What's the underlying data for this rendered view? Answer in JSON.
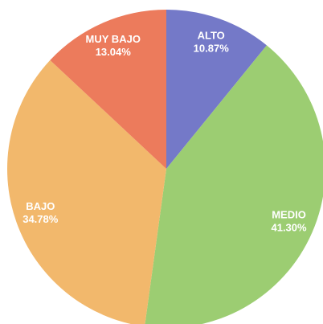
{
  "chart_data": {
    "type": "pie",
    "categories": [
      "ALTO",
      "MEDIO",
      "BAJO",
      "MUY BAJO"
    ],
    "values": [
      10.87,
      41.3,
      34.78,
      13.04
    ],
    "value_labels": [
      "10.87%",
      "41.30%",
      "34.78%",
      "13.04%"
    ],
    "colors": [
      "#7479c8",
      "#9ccd72",
      "#f2b86c",
      "#ec7b5c"
    ]
  }
}
